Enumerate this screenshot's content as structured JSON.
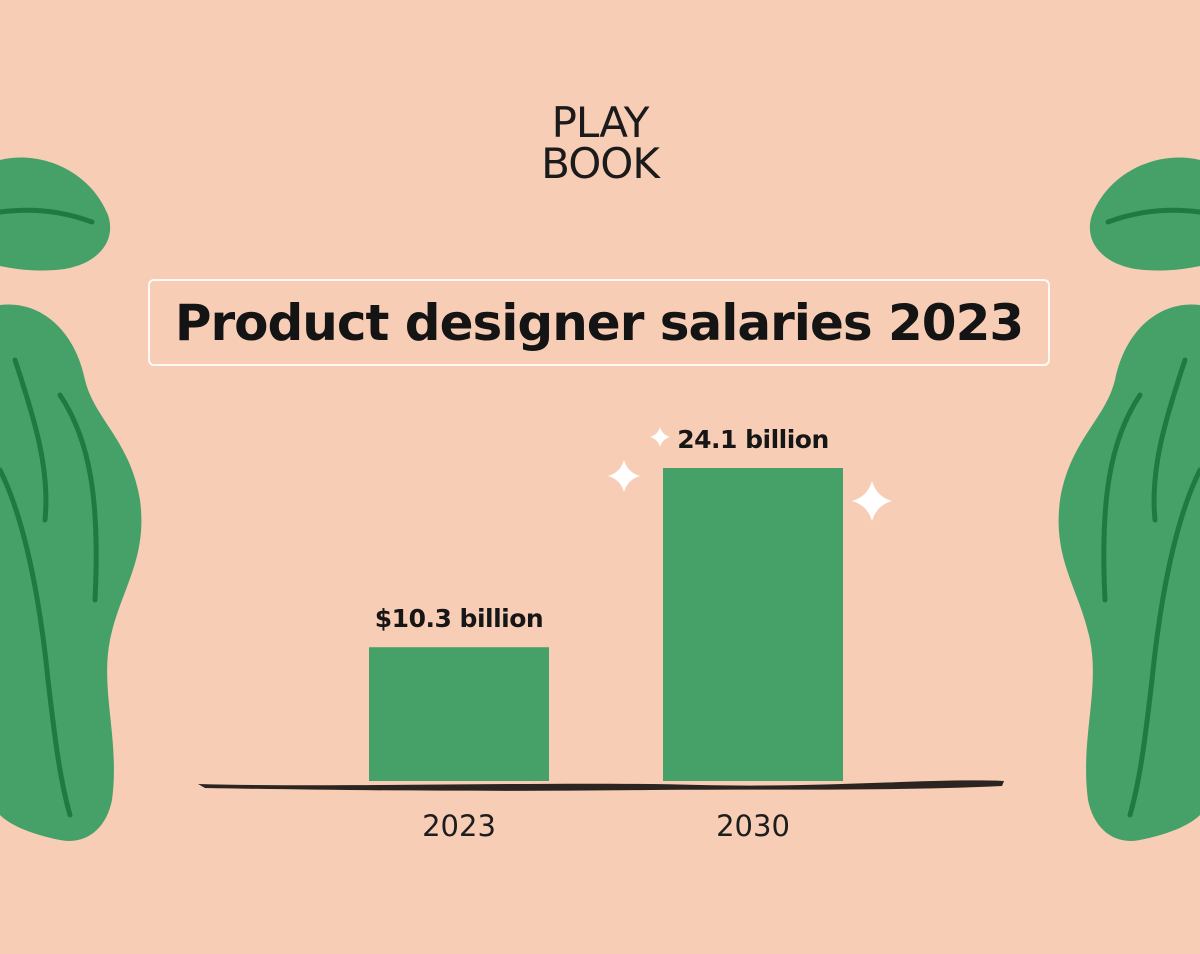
{
  "brand": {
    "logo_line_1": "PLAY",
    "logo_line_2": "BOOK"
  },
  "colors": {
    "background": "#f8cdb6",
    "bar": "#46a168",
    "leaf": "#46a168",
    "leaf_vein": "#1f7a3f",
    "axis": "#2b2420",
    "sparkle": "#ffffff",
    "title_border": "#fffaf5"
  },
  "chart_data": {
    "type": "bar",
    "title": "Product designer salaries 2023",
    "categories": [
      "2023",
      "2030"
    ],
    "values": [
      10.3,
      24.1
    ],
    "value_labels": [
      "$10.3 billion",
      "24.1 billion"
    ],
    "xlabel": "",
    "ylabel": "",
    "ylim": [
      0,
      24.1
    ],
    "grid": false,
    "legend": "none"
  }
}
